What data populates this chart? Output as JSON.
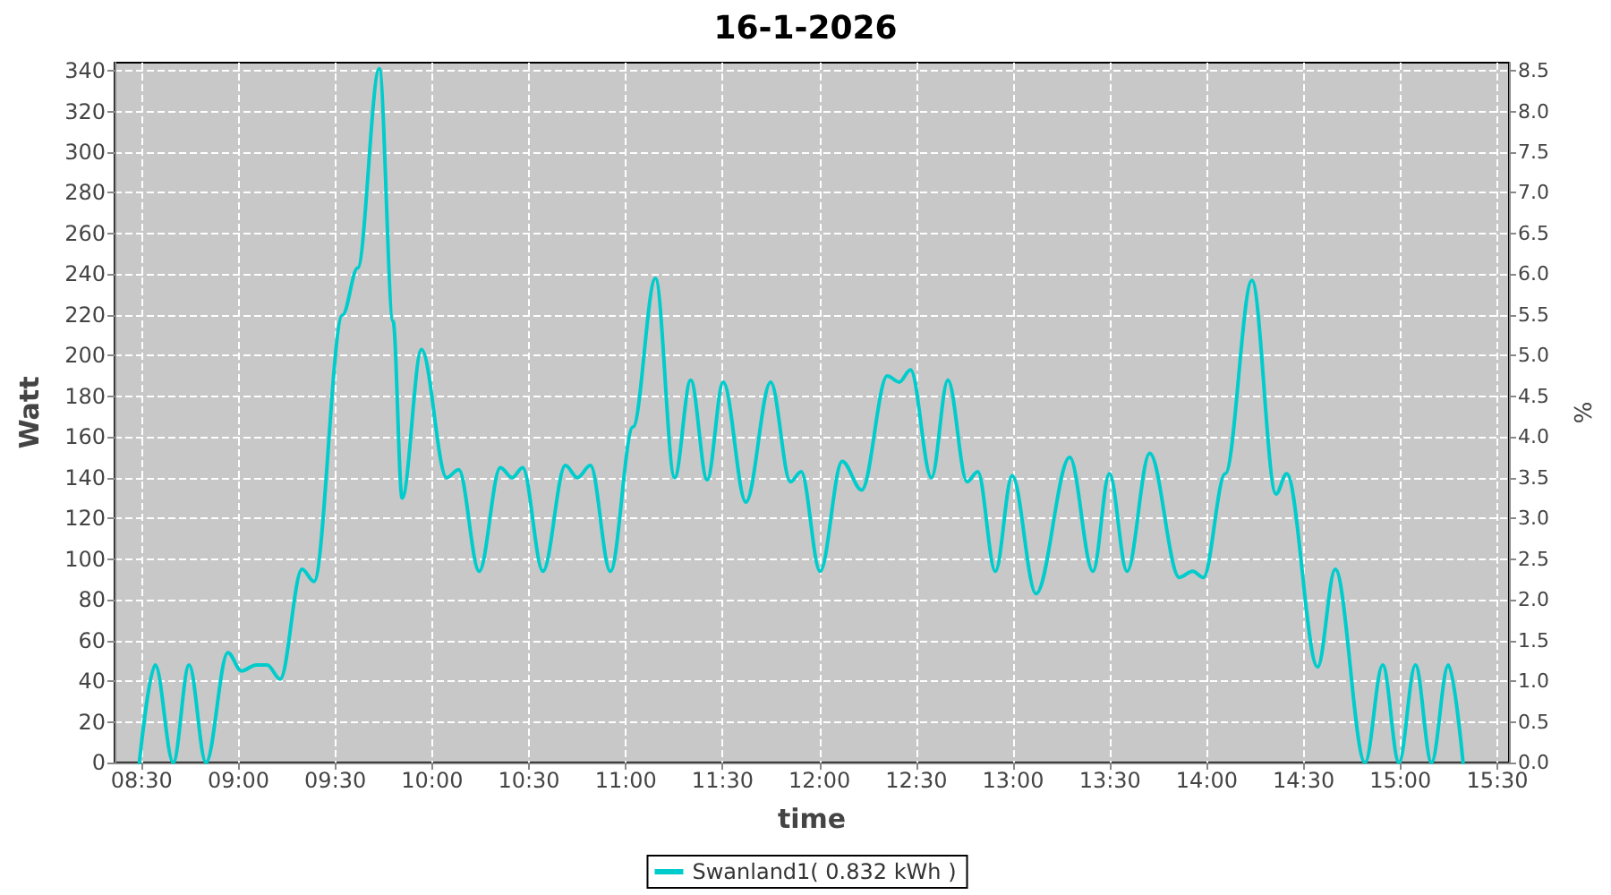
{
  "chart_data": {
    "type": "line",
    "title": "16-1-2026",
    "xlabel": "time",
    "ylabel": "Watt",
    "y2label": "%",
    "xlim": [
      8.36,
      15.56
    ],
    "xticks": [
      {
        "value": 8.5,
        "label": "08:30"
      },
      {
        "value": 9,
        "label": "09:00"
      },
      {
        "value": 9.5,
        "label": "09:30"
      },
      {
        "value": 10,
        "label": "10:00"
      },
      {
        "value": 10.5,
        "label": "10:30"
      },
      {
        "value": 11,
        "label": "11:00"
      },
      {
        "value": 11.5,
        "label": "11:30"
      },
      {
        "value": 12,
        "label": "12:00"
      },
      {
        "value": 12.5,
        "label": "12:30"
      },
      {
        "value": 13,
        "label": "13:00"
      },
      {
        "value": 13.5,
        "label": "13:30"
      },
      {
        "value": 14,
        "label": "14:00"
      },
      {
        "value": 14.5,
        "label": "14:30"
      },
      {
        "value": 15,
        "label": "15:00"
      },
      {
        "value": 15.5,
        "label": "15:30"
      }
    ],
    "ylim": [
      0,
      344
    ],
    "yticks": [
      0,
      20,
      40,
      60,
      80,
      100,
      120,
      140,
      160,
      180,
      200,
      220,
      240,
      260,
      280,
      300,
      320,
      340
    ],
    "y2lim": [
      0,
      8.6
    ],
    "y2ticks": [
      {
        "value": 0,
        "label": "0.0"
      },
      {
        "value": 0.5,
        "label": "0.5"
      },
      {
        "value": 1,
        "label": "1.0"
      },
      {
        "value": 1.5,
        "label": "1.5"
      },
      {
        "value": 2,
        "label": "2.0"
      },
      {
        "value": 2.5,
        "label": "2.5"
      },
      {
        "value": 3,
        "label": "3.0"
      },
      {
        "value": 3.5,
        "label": "3.5"
      },
      {
        "value": 4,
        "label": "4.0"
      },
      {
        "value": 4.5,
        "label": "4.5"
      },
      {
        "value": 5,
        "label": "5.0"
      },
      {
        "value": 5.5,
        "label": "5.5"
      },
      {
        "value": 6,
        "label": "6.0"
      },
      {
        "value": 6.5,
        "label": "6.5"
      },
      {
        "value": 7,
        "label": "7.0"
      },
      {
        "value": 7.5,
        "label": "7.5"
      },
      {
        "value": 8,
        "label": "8.0"
      },
      {
        "value": 8.5,
        "label": "8.5"
      }
    ],
    "grid": true,
    "legend": "bottom",
    "marker": "none",
    "line_style": "solid",
    "series": [
      {
        "name": "Swanland1( 0.832 kWh )",
        "color": "#00cccc",
        "x": [
          8.488,
          8.57,
          8.663,
          8.745,
          8.832,
          8.945,
          9.015,
          9.092,
          9.148,
          9.215,
          9.328,
          9.39,
          9.537,
          9.615,
          9.727,
          9.798,
          9.845,
          9.945,
          10.075,
          10.137,
          10.243,
          10.352,
          10.413,
          10.467,
          10.572,
          10.688,
          10.75,
          10.817,
          10.92,
          11.037,
          11.153,
          11.252,
          11.335,
          11.42,
          11.503,
          11.62,
          11.748,
          11.85,
          11.905,
          12.003,
          12.117,
          12.218,
          12.35,
          12.412,
          12.47,
          12.578,
          12.663,
          12.762,
          12.817,
          12.908,
          12.995,
          13.118,
          13.292,
          13.412,
          13.497,
          13.588,
          13.705,
          13.858,
          13.927,
          13.982,
          14.095,
          14.233,
          14.357,
          14.412,
          14.572,
          14.663,
          14.817,
          14.908,
          14.992,
          15.077,
          15.16,
          15.247,
          15.323
        ],
        "values": [
          0,
          48,
          0,
          48,
          0,
          54,
          45,
          48,
          48,
          41,
          95,
          89,
          220,
          243,
          341,
          217,
          130,
          203,
          140,
          144,
          94,
          145,
          140,
          145,
          94,
          146,
          140,
          146,
          94,
          165,
          238,
          140,
          188,
          139,
          187,
          128,
          187,
          138,
          143,
          94,
          148,
          134,
          190,
          187,
          193,
          140,
          188,
          138,
          143,
          94,
          141,
          83,
          150,
          94,
          142,
          94,
          152,
          91,
          94,
          91,
          142,
          237,
          132,
          142,
          47,
          95,
          0,
          48,
          0,
          48,
          0,
          48,
          0
        ]
      }
    ]
  }
}
